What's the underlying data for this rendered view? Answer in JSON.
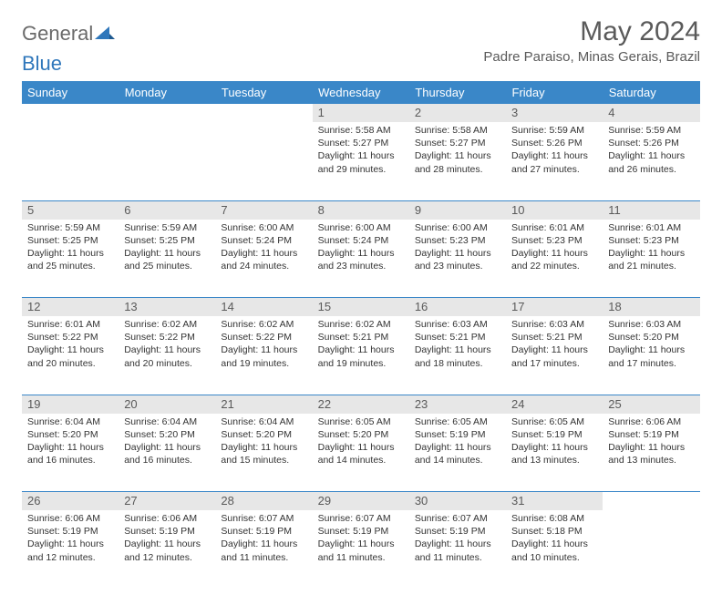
{
  "logo": {
    "general": "General",
    "blue": "Blue"
  },
  "title": "May 2024",
  "location": "Padre Paraiso, Minas Gerais, Brazil",
  "header_row": {
    "background_color": "#3a87c8",
    "text_color": "#ffffff",
    "days": [
      "Sunday",
      "Monday",
      "Tuesday",
      "Wednesday",
      "Thursday",
      "Friday",
      "Saturday"
    ]
  },
  "daynum_style": {
    "background_color": "#e7e7e7",
    "text_color": "#5a5a5a"
  },
  "row_border_color": "#3a87c8",
  "weeks": [
    [
      {
        "n": "",
        "sunrise": "",
        "sunset": "",
        "daylight": ""
      },
      {
        "n": "",
        "sunrise": "",
        "sunset": "",
        "daylight": ""
      },
      {
        "n": "",
        "sunrise": "",
        "sunset": "",
        "daylight": ""
      },
      {
        "n": "1",
        "sunrise": "Sunrise: 5:58 AM",
        "sunset": "Sunset: 5:27 PM",
        "daylight": "Daylight: 11 hours and 29 minutes."
      },
      {
        "n": "2",
        "sunrise": "Sunrise: 5:58 AM",
        "sunset": "Sunset: 5:27 PM",
        "daylight": "Daylight: 11 hours and 28 minutes."
      },
      {
        "n": "3",
        "sunrise": "Sunrise: 5:59 AM",
        "sunset": "Sunset: 5:26 PM",
        "daylight": "Daylight: 11 hours and 27 minutes."
      },
      {
        "n": "4",
        "sunrise": "Sunrise: 5:59 AM",
        "sunset": "Sunset: 5:26 PM",
        "daylight": "Daylight: 11 hours and 26 minutes."
      }
    ],
    [
      {
        "n": "5",
        "sunrise": "Sunrise: 5:59 AM",
        "sunset": "Sunset: 5:25 PM",
        "daylight": "Daylight: 11 hours and 25 minutes."
      },
      {
        "n": "6",
        "sunrise": "Sunrise: 5:59 AM",
        "sunset": "Sunset: 5:25 PM",
        "daylight": "Daylight: 11 hours and 25 minutes."
      },
      {
        "n": "7",
        "sunrise": "Sunrise: 6:00 AM",
        "sunset": "Sunset: 5:24 PM",
        "daylight": "Daylight: 11 hours and 24 minutes."
      },
      {
        "n": "8",
        "sunrise": "Sunrise: 6:00 AM",
        "sunset": "Sunset: 5:24 PM",
        "daylight": "Daylight: 11 hours and 23 minutes."
      },
      {
        "n": "9",
        "sunrise": "Sunrise: 6:00 AM",
        "sunset": "Sunset: 5:23 PM",
        "daylight": "Daylight: 11 hours and 23 minutes."
      },
      {
        "n": "10",
        "sunrise": "Sunrise: 6:01 AM",
        "sunset": "Sunset: 5:23 PM",
        "daylight": "Daylight: 11 hours and 22 minutes."
      },
      {
        "n": "11",
        "sunrise": "Sunrise: 6:01 AM",
        "sunset": "Sunset: 5:23 PM",
        "daylight": "Daylight: 11 hours and 21 minutes."
      }
    ],
    [
      {
        "n": "12",
        "sunrise": "Sunrise: 6:01 AM",
        "sunset": "Sunset: 5:22 PM",
        "daylight": "Daylight: 11 hours and 20 minutes."
      },
      {
        "n": "13",
        "sunrise": "Sunrise: 6:02 AM",
        "sunset": "Sunset: 5:22 PM",
        "daylight": "Daylight: 11 hours and 20 minutes."
      },
      {
        "n": "14",
        "sunrise": "Sunrise: 6:02 AM",
        "sunset": "Sunset: 5:22 PM",
        "daylight": "Daylight: 11 hours and 19 minutes."
      },
      {
        "n": "15",
        "sunrise": "Sunrise: 6:02 AM",
        "sunset": "Sunset: 5:21 PM",
        "daylight": "Daylight: 11 hours and 19 minutes."
      },
      {
        "n": "16",
        "sunrise": "Sunrise: 6:03 AM",
        "sunset": "Sunset: 5:21 PM",
        "daylight": "Daylight: 11 hours and 18 minutes."
      },
      {
        "n": "17",
        "sunrise": "Sunrise: 6:03 AM",
        "sunset": "Sunset: 5:21 PM",
        "daylight": "Daylight: 11 hours and 17 minutes."
      },
      {
        "n": "18",
        "sunrise": "Sunrise: 6:03 AM",
        "sunset": "Sunset: 5:20 PM",
        "daylight": "Daylight: 11 hours and 17 minutes."
      }
    ],
    [
      {
        "n": "19",
        "sunrise": "Sunrise: 6:04 AM",
        "sunset": "Sunset: 5:20 PM",
        "daylight": "Daylight: 11 hours and 16 minutes."
      },
      {
        "n": "20",
        "sunrise": "Sunrise: 6:04 AM",
        "sunset": "Sunset: 5:20 PM",
        "daylight": "Daylight: 11 hours and 16 minutes."
      },
      {
        "n": "21",
        "sunrise": "Sunrise: 6:04 AM",
        "sunset": "Sunset: 5:20 PM",
        "daylight": "Daylight: 11 hours and 15 minutes."
      },
      {
        "n": "22",
        "sunrise": "Sunrise: 6:05 AM",
        "sunset": "Sunset: 5:20 PM",
        "daylight": "Daylight: 11 hours and 14 minutes."
      },
      {
        "n": "23",
        "sunrise": "Sunrise: 6:05 AM",
        "sunset": "Sunset: 5:19 PM",
        "daylight": "Daylight: 11 hours and 14 minutes."
      },
      {
        "n": "24",
        "sunrise": "Sunrise: 6:05 AM",
        "sunset": "Sunset: 5:19 PM",
        "daylight": "Daylight: 11 hours and 13 minutes."
      },
      {
        "n": "25",
        "sunrise": "Sunrise: 6:06 AM",
        "sunset": "Sunset: 5:19 PM",
        "daylight": "Daylight: 11 hours and 13 minutes."
      }
    ],
    [
      {
        "n": "26",
        "sunrise": "Sunrise: 6:06 AM",
        "sunset": "Sunset: 5:19 PM",
        "daylight": "Daylight: 11 hours and 12 minutes."
      },
      {
        "n": "27",
        "sunrise": "Sunrise: 6:06 AM",
        "sunset": "Sunset: 5:19 PM",
        "daylight": "Daylight: 11 hours and 12 minutes."
      },
      {
        "n": "28",
        "sunrise": "Sunrise: 6:07 AM",
        "sunset": "Sunset: 5:19 PM",
        "daylight": "Daylight: 11 hours and 11 minutes."
      },
      {
        "n": "29",
        "sunrise": "Sunrise: 6:07 AM",
        "sunset": "Sunset: 5:19 PM",
        "daylight": "Daylight: 11 hours and 11 minutes."
      },
      {
        "n": "30",
        "sunrise": "Sunrise: 6:07 AM",
        "sunset": "Sunset: 5:19 PM",
        "daylight": "Daylight: 11 hours and 11 minutes."
      },
      {
        "n": "31",
        "sunrise": "Sunrise: 6:08 AM",
        "sunset": "Sunset: 5:18 PM",
        "daylight": "Daylight: 11 hours and 10 minutes."
      },
      {
        "n": "",
        "sunrise": "",
        "sunset": "",
        "daylight": ""
      }
    ]
  ]
}
